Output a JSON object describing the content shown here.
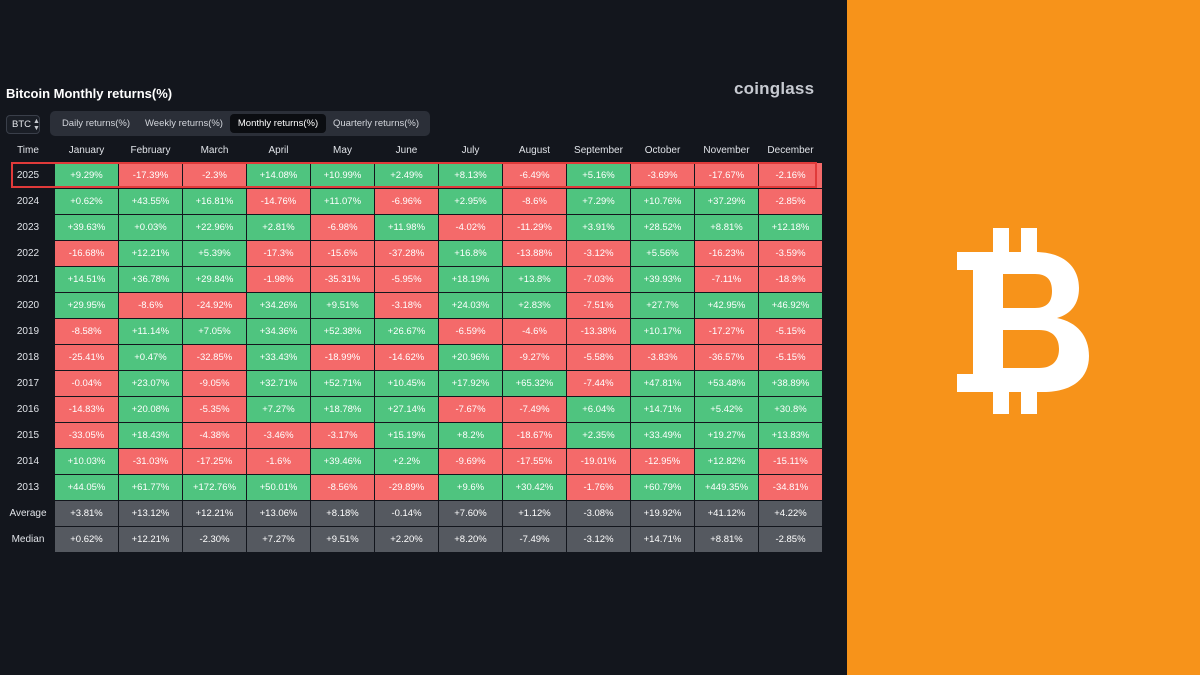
{
  "brand": "coinglass",
  "title": "Bitcoin Monthly returns(%)",
  "coin_selector": {
    "value": "BTC"
  },
  "tabs": [
    {
      "label": "Daily returns(%)",
      "active": false
    },
    {
      "label": "Weekly returns(%)",
      "active": false
    },
    {
      "label": "Monthly returns(%)",
      "active": true
    },
    {
      "label": "Quarterly returns(%)",
      "active": false
    }
  ],
  "table": {
    "header": [
      "Time",
      "January",
      "February",
      "March",
      "April",
      "May",
      "June",
      "July",
      "August",
      "September",
      "October",
      "November",
      "December"
    ],
    "rows": [
      {
        "label": "2025",
        "values": [
          "+9.29%",
          "-17.39%",
          "-2.3%",
          "+14.08%",
          "+10.99%",
          "+2.49%",
          "+8.13%",
          "-6.49%",
          "+5.16%",
          "-3.69%",
          "-17.67%",
          "-2.16%"
        ]
      },
      {
        "label": "2024",
        "values": [
          "+0.62%",
          "+43.55%",
          "+16.81%",
          "-14.76%",
          "+11.07%",
          "-6.96%",
          "+2.95%",
          "-8.6%",
          "+7.29%",
          "+10.76%",
          "+37.29%",
          "-2.85%"
        ]
      },
      {
        "label": "2023",
        "values": [
          "+39.63%",
          "+0.03%",
          "+22.96%",
          "+2.81%",
          "-6.98%",
          "+11.98%",
          "-4.02%",
          "-11.29%",
          "+3.91%",
          "+28.52%",
          "+8.81%",
          "+12.18%"
        ]
      },
      {
        "label": "2022",
        "values": [
          "-16.68%",
          "+12.21%",
          "+5.39%",
          "-17.3%",
          "-15.6%",
          "-37.28%",
          "+16.8%",
          "-13.88%",
          "-3.12%",
          "+5.56%",
          "-16.23%",
          "-3.59%"
        ]
      },
      {
        "label": "2021",
        "values": [
          "+14.51%",
          "+36.78%",
          "+29.84%",
          "-1.98%",
          "-35.31%",
          "-5.95%",
          "+18.19%",
          "+13.8%",
          "-7.03%",
          "+39.93%",
          "-7.11%",
          "-18.9%"
        ]
      },
      {
        "label": "2020",
        "values": [
          "+29.95%",
          "-8.6%",
          "-24.92%",
          "+34.26%",
          "+9.51%",
          "-3.18%",
          "+24.03%",
          "+2.83%",
          "-7.51%",
          "+27.7%",
          "+42.95%",
          "+46.92%"
        ]
      },
      {
        "label": "2019",
        "values": [
          "-8.58%",
          "+11.14%",
          "+7.05%",
          "+34.36%",
          "+52.38%",
          "+26.67%",
          "-6.59%",
          "-4.6%",
          "-13.38%",
          "+10.17%",
          "-17.27%",
          "-5.15%"
        ]
      },
      {
        "label": "2018",
        "values": [
          "-25.41%",
          "+0.47%",
          "-32.85%",
          "+33.43%",
          "-18.99%",
          "-14.62%",
          "+20.96%",
          "-9.27%",
          "-5.58%",
          "-3.83%",
          "-36.57%",
          "-5.15%"
        ]
      },
      {
        "label": "2017",
        "values": [
          "-0.04%",
          "+23.07%",
          "-9.05%",
          "+32.71%",
          "+52.71%",
          "+10.45%",
          "+17.92%",
          "+65.32%",
          "-7.44%",
          "+47.81%",
          "+53.48%",
          "+38.89%"
        ]
      },
      {
        "label": "2016",
        "values": [
          "-14.83%",
          "+20.08%",
          "-5.35%",
          "+7.27%",
          "+18.78%",
          "+27.14%",
          "-7.67%",
          "-7.49%",
          "+6.04%",
          "+14.71%",
          "+5.42%",
          "+30.8%"
        ]
      },
      {
        "label": "2015",
        "values": [
          "-33.05%",
          "+18.43%",
          "-4.38%",
          "-3.46%",
          "-3.17%",
          "+15.19%",
          "+8.2%",
          "-18.67%",
          "+2.35%",
          "+33.49%",
          "+19.27%",
          "+13.83%"
        ]
      },
      {
        "label": "2014",
        "values": [
          "+10.03%",
          "-31.03%",
          "-17.25%",
          "-1.6%",
          "+39.46%",
          "+2.2%",
          "-9.69%",
          "-17.55%",
          "-19.01%",
          "-12.95%",
          "+12.82%",
          "-15.11%"
        ]
      },
      {
        "label": "2013",
        "values": [
          "+44.05%",
          "+61.77%",
          "+172.76%",
          "+50.01%",
          "-8.56%",
          "-29.89%",
          "+9.6%",
          "+30.42%",
          "-1.76%",
          "+60.79%",
          "+449.35%",
          "-34.81%"
        ]
      }
    ],
    "summary_rows": [
      {
        "label": "Average",
        "values": [
          "+3.81%",
          "+13.12%",
          "+12.21%",
          "+13.06%",
          "+8.18%",
          "-0.14%",
          "+7.60%",
          "+1.12%",
          "-3.08%",
          "+19.92%",
          "+41.12%",
          "+4.22%"
        ]
      },
      {
        "label": "Median",
        "values": [
          "+0.62%",
          "+12.21%",
          "-2.30%",
          "+7.27%",
          "+9.51%",
          "+2.20%",
          "+8.20%",
          "-7.49%",
          "-3.12%",
          "+14.71%",
          "+8.81%",
          "-2.85%"
        ]
      }
    ],
    "highlighted_row": "2025"
  },
  "colors": {
    "background": "#13161d",
    "positive": "#4fc47f",
    "negative": "#f46a6a",
    "summary": "#555960",
    "highlight_border": "#e03a3a",
    "side_panel": "#f7931a"
  },
  "icons": {
    "side_panel_logo": "bitcoin-logo-icon",
    "selector_arrows": "chevron-updown-icon"
  }
}
